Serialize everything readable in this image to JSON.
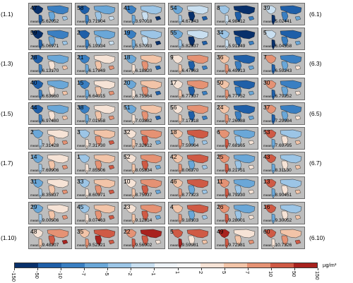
{
  "chart_data": {
    "type": "heatmap",
    "title": "",
    "panels": [
      {
        "id": "47",
        "mean": "5.62052"
      },
      {
        "id": "58",
        "mean": "3.71904"
      },
      {
        "id": "41",
        "mean": "3.97018"
      },
      {
        "id": "54",
        "mean": "4.67243"
      },
      {
        "id": "8",
        "mean": "4.98412"
      },
      {
        "id": "39",
        "mean": "5.02441"
      },
      {
        "id": "59",
        "mean": "5.06971"
      },
      {
        "id": "2",
        "mean": "5.19334"
      },
      {
        "id": "19",
        "mean": "5.57093"
      },
      {
        "id": "55",
        "mean": "5.82837"
      },
      {
        "id": "34",
        "mean": "5.91249"
      },
      {
        "id": "5",
        "mean": "6.04558"
      },
      {
        "id": "28",
        "mean": "6.13170"
      },
      {
        "id": "21",
        "mean": "6.17949"
      },
      {
        "id": "18",
        "mean": "6.18820"
      },
      {
        "id": "9",
        "mean": "6.47963"
      },
      {
        "id": "36",
        "mean": "6.49913"
      },
      {
        "id": "7",
        "mean": "6.59243"
      },
      {
        "id": "40",
        "mean": "6.63660"
      },
      {
        "id": "15",
        "mean": "6.64015"
      },
      {
        "id": "20",
        "mean": "6.75564"
      },
      {
        "id": "17",
        "mean": "6.77337"
      },
      {
        "id": "50",
        "mean": "6.77752"
      },
      {
        "id": "30",
        "mean": "6.79252"
      },
      {
        "id": "44",
        "mean": "6.97480"
      },
      {
        "id": "38",
        "mean": "7.01558"
      },
      {
        "id": "51",
        "mean": "7.03882"
      },
      {
        "id": "56",
        "mean": "7.17218"
      },
      {
        "id": "24",
        "mean": "7.26088"
      },
      {
        "id": "37",
        "mean": "7.29984"
      },
      {
        "id": "2",
        "mean": "7.31428"
      },
      {
        "id": "3",
        "mean": "7.31730"
      },
      {
        "id": "32",
        "mean": "7.32612"
      },
      {
        "id": "18",
        "mean": "7.59064"
      },
      {
        "id": "6",
        "mean": "7.68165"
      },
      {
        "id": "53",
        "mean": "7.69795"
      },
      {
        "id": "14",
        "mean": "7.69906"
      },
      {
        "id": "1",
        "mean": "7.85506"
      },
      {
        "id": "52",
        "mean": "8.05834"
      },
      {
        "id": "42",
        "mean": "8.06270"
      },
      {
        "id": "25",
        "mean": "8.21751"
      },
      {
        "id": "43",
        "mean": "8.31130"
      },
      {
        "id": "31",
        "mean": "8.35837"
      },
      {
        "id": "33",
        "mean": "8.60971"
      },
      {
        "id": "10",
        "mean": "8.75037"
      },
      {
        "id": "46",
        "mean": "8.77323"
      },
      {
        "id": "11",
        "mean": "8.79230"
      },
      {
        "id": "13",
        "mean": "8.90451"
      },
      {
        "id": "29",
        "mean": "9.00506"
      },
      {
        "id": "45",
        "mean": "9.07463"
      },
      {
        "id": "23",
        "mean": "9.12814"
      },
      {
        "id": "4",
        "mean": "9.18103"
      },
      {
        "id": "26",
        "mean": "9.28001"
      },
      {
        "id": "16",
        "mean": "9.30052"
      },
      {
        "id": "48",
        "mean": "9.48207"
      },
      {
        "id": "35",
        "mean": "9.52321"
      },
      {
        "id": "22",
        "mean": "9.56002"
      },
      {
        "id": "5",
        "mean": "9.59981"
      },
      {
        "id": "49",
        "mean": "9.72381"
      },
      {
        "id": "60",
        "mean": "10.7326"
      }
    ],
    "mean_label": "mean =",
    "row_labels_left": [
      {
        "row": 0,
        "text": "(1.1)"
      },
      {
        "row": 2,
        "text": "(1.3)"
      },
      {
        "row": 4,
        "text": "(1.5)"
      },
      {
        "row": 6,
        "text": "(1.7)"
      },
      {
        "row": 9,
        "text": "(1.10)"
      }
    ],
    "row_labels_right": [
      {
        "row": 0,
        "text": "(6.1)"
      },
      {
        "row": 2,
        "text": "(6.3)"
      },
      {
        "row": 4,
        "text": "(6.5)"
      },
      {
        "row": 6,
        "text": "(6.7)"
      },
      {
        "row": 9,
        "text": "(6.10)"
      }
    ],
    "colorbar": {
      "ticks": [
        "-150",
        "-50",
        "-10",
        "-7",
        "-5",
        "-2",
        "-1",
        "1",
        "2",
        "5",
        "7",
        "10",
        "50",
        "150"
      ],
      "colors": [
        "#08306b",
        "#1f5fa8",
        "#3a7fc2",
        "#6aa7d8",
        "#9cc5e6",
        "#c9dff0",
        "#eef3f7",
        "#f7f7f7",
        "#f6e3d6",
        "#f2c4a8",
        "#e59274",
        "#cf5a45",
        "#a8221e"
      ],
      "unit": "µg/m³"
    }
  }
}
